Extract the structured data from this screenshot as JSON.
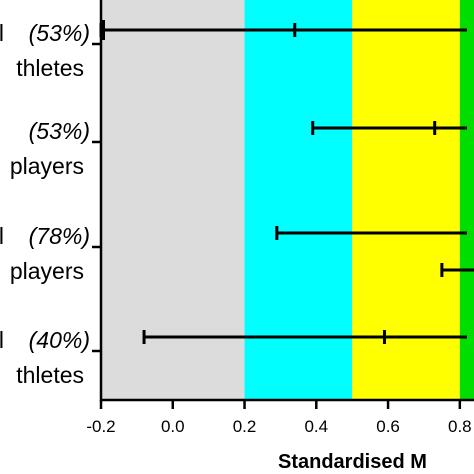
{
  "chart_data": {
    "type": "forest",
    "xlabel": "Standardised M",
    "xlim": [
      -0.2,
      0.82
    ],
    "x_ticks": [
      "-0.2",
      "0.0",
      "0.2",
      "0.4",
      "0.6",
      "0.8"
    ],
    "bands": [
      {
        "from": -0.2,
        "to": 0.2,
        "color": "#dcdcdc"
      },
      {
        "from": 0.2,
        "to": 0.5,
        "color": "#00ffff"
      },
      {
        "from": 0.5,
        "to": 0.8,
        "color": "#ffff00"
      },
      {
        "from": 0.8,
        "to": 0.82,
        "color": "#00dd00"
      }
    ],
    "rows": [
      {
        "pct": "(53%)",
        "group": "thletes",
        "mean": 0.34,
        "lower": -0.2,
        "upper": 0.82,
        "prefix": "l"
      },
      {
        "pct": "(53%)",
        "group": "players",
        "mean": 0.73,
        "lower": 0.39,
        "upper": 0.82,
        "prefix": ""
      },
      {
        "pct": "(78%)",
        "group": "players",
        "mean": null,
        "lower": 0.29,
        "upper": 0.82,
        "prefix": "l",
        "extra_lower": 0.75
      },
      {
        "pct": "(40%)",
        "group": "thletes",
        "mean": 0.59,
        "lower": -0.08,
        "upper": 0.82,
        "prefix": "l"
      }
    ]
  }
}
